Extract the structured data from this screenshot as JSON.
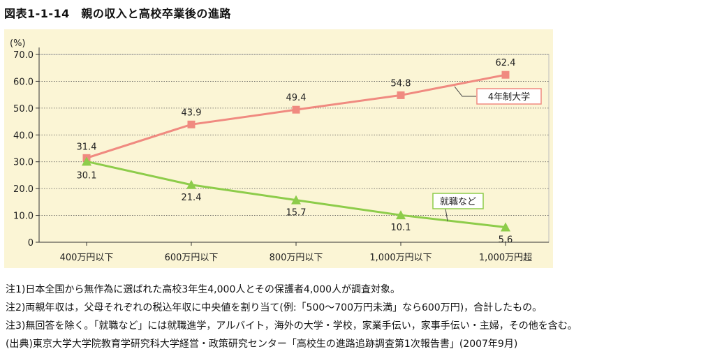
{
  "title": "図表1-1-14　親の収入と高校卒業後の進路",
  "chart_data": {
    "type": "line",
    "title": "",
    "xlabel": "",
    "ylabel": "(%)",
    "ylim": [
      0,
      70
    ],
    "yticks": [
      "0",
      "10.0",
      "20.0",
      "30.0",
      "40.0",
      "50.0",
      "60.0",
      "70.0"
    ],
    "grid": true,
    "categories": [
      "400万円以下",
      "600万円以下",
      "800万円以下",
      "1,000万円以下",
      "1,000万円超"
    ],
    "series": [
      {
        "name": "4年制大学",
        "values": [
          31.4,
          43.9,
          49.4,
          54.8,
          62.4
        ],
        "color": "#f08a80",
        "marker": "square"
      },
      {
        "name": "就職など",
        "values": [
          30.1,
          21.4,
          15.7,
          10.1,
          5.6
        ],
        "color": "#8dcc4a",
        "marker": "triangle"
      }
    ],
    "background": "#fbf5d5"
  },
  "notes": [
    "注1)日本全国から無作為に選ばれた高校3年生4,000人とその保護者4,000人が調査対象。",
    "注2)両親年収は，父母それぞれの税込年収に中央値を割り当て(例:「500～700万円未満」なら600万円)，合計したもの。",
    "注3)無回答を除く。「就職など」には就職進学，アルバイト，海外の大学・学校，家業手伝い，家事手伝い・主婦，その他を含む。",
    "(出典)東京大学大学院教育学研究科大学経営・政策研究センター「高校生の進路追跡調査第1次報告書」(2007年9月)"
  ]
}
